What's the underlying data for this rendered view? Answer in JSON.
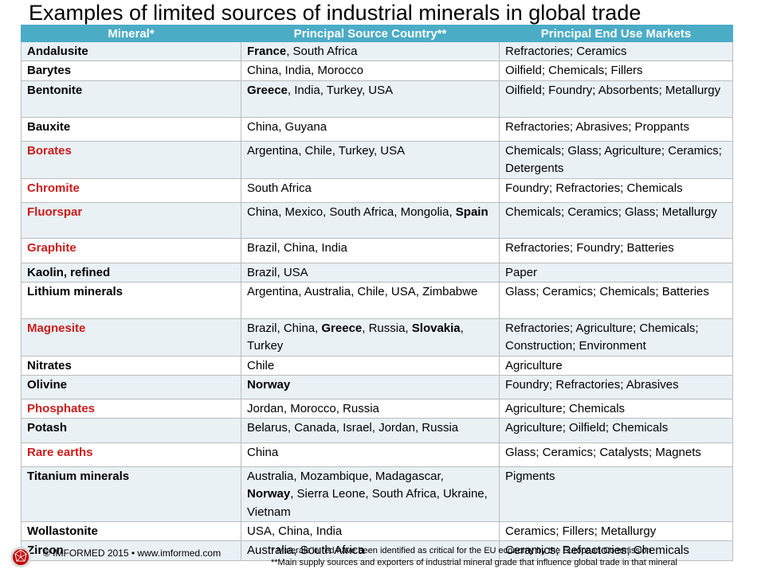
{
  "title": "Examples of limited sources of industrial minerals in global trade",
  "columns": [
    "Mineral*",
    "Principal Source Country**",
    "Principal End Use Markets"
  ],
  "rows": [
    {
      "mineral": "Andalusite",
      "critical": false,
      "sources": [
        {
          "t": "France",
          "b": true
        },
        {
          "t": ", South Africa",
          "b": false
        }
      ],
      "uses": "Refractories; Ceramics",
      "h": 1
    },
    {
      "mineral": "Barytes",
      "critical": false,
      "sources": [
        {
          "t": "China, India, Morocco",
          "b": false
        }
      ],
      "uses": "Oilfield; Chemicals; Fillers",
      "h": 1
    },
    {
      "mineral": "Bentonite",
      "critical": false,
      "sources": [
        {
          "t": "Greece",
          "b": true
        },
        {
          "t": ", India, Turkey, USA",
          "b": false
        }
      ],
      "uses": "Oilfield;  Foundry; Absorbents; Metallurgy",
      "h": 2
    },
    {
      "mineral": "Bauxite",
      "critical": false,
      "sources": [
        {
          "t": "China, Guyana",
          "b": false
        }
      ],
      "uses": "Refractories; Abrasives; Proppants",
      "h": 1.3
    },
    {
      "mineral": "Borates",
      "critical": true,
      "sources": [
        {
          "t": "Argentina, Chile, Turkey, USA",
          "b": false
        }
      ],
      "uses": "Chemicals; Glass; Agriculture; Ceramics; Detergents",
      "h": 2
    },
    {
      "mineral": "Chromite",
      "critical": true,
      "sources": [
        {
          "t": "South Africa",
          "b": false
        }
      ],
      "uses": "Foundry; Refractories; Chemicals",
      "h": 1.3
    },
    {
      "mineral": "Fluorspar",
      "critical": true,
      "sources": [
        {
          "t": "China, Mexico, South Africa, Mongolia, ",
          "b": false
        },
        {
          "t": "Spain",
          "b": true
        }
      ],
      "uses": "Chemicals; Ceramics; Glass; Metallurgy",
      "h": 2
    },
    {
      "mineral": "Graphite",
      "critical": true,
      "sources": [
        {
          "t": "Brazil, China,  India",
          "b": false
        }
      ],
      "uses": "Refractories; Foundry; Batteries",
      "h": 1.3
    },
    {
      "mineral": "Kaolin, refined",
      "critical": false,
      "sources": [
        {
          "t": "Brazil, USA",
          "b": false
        }
      ],
      "uses": "Paper",
      "h": 1
    },
    {
      "mineral": "Lithium minerals",
      "critical": false,
      "sources": [
        {
          "t": "Argentina, Australia, Chile, USA, Zimbabwe",
          "b": false
        }
      ],
      "uses": "Glass; Ceramics; Chemicals; Batteries",
      "h": 2
    },
    {
      "mineral": "Magnesite",
      "critical": true,
      "sources": [
        {
          "t": "Brazil, China, ",
          "b": false
        },
        {
          "t": "Greece",
          "b": true
        },
        {
          "t": ", Russia, ",
          "b": false
        },
        {
          "t": "Slovakia",
          "b": true
        },
        {
          "t": ", Turkey",
          "b": false
        }
      ],
      "uses": "Refractories; Agriculture; Chemicals; Construction; Environment",
      "h": 2
    },
    {
      "mineral": "Nitrates",
      "critical": false,
      "sources": [
        {
          "t": "Chile",
          "b": false
        }
      ],
      "uses": "Agriculture",
      "h": 1
    },
    {
      "mineral": "Olivine",
      "critical": false,
      "sources": [
        {
          "t": "Norway",
          "b": true
        }
      ],
      "uses": "Foundry; Refractories; Abrasives",
      "h": 1.3
    },
    {
      "mineral": "Phosphates",
      "critical": true,
      "sources": [
        {
          "t": "Jordan, Morocco, Russia",
          "b": false
        }
      ],
      "uses": "Agriculture; Chemicals",
      "h": 1
    },
    {
      "mineral": "Potash",
      "critical": false,
      "sources": [
        {
          "t": "Belarus, Canada,  Israel, Jordan, Russia",
          "b": false
        }
      ],
      "uses": "Agriculture; Oilfield;  Chemicals",
      "h": 1.3
    },
    {
      "mineral": "Rare earths",
      "critical": true,
      "sources": [
        {
          "t": "China",
          "b": false
        }
      ],
      "uses": "Glass; Ceramics; Catalysts; Magnets",
      "h": 1.3
    },
    {
      "mineral": "Titanium minerals",
      "critical": false,
      "sources": [
        {
          "t": "Australia, Mozambique, Madagascar, ",
          "b": false
        },
        {
          "t": "Norway",
          "b": true
        },
        {
          "t": ", Sierra Leone, South Africa, Ukraine, Vietnam",
          "b": false
        }
      ],
      "uses": "Pigments",
      "h": 3
    },
    {
      "mineral": "Wollastonite",
      "critical": false,
      "sources": [
        {
          "t": "USA, China,  India",
          "b": false
        }
      ],
      "uses": "Ceramics; Fillers; Metallurgy",
      "h": 1
    },
    {
      "mineral": "Zircon",
      "critical": false,
      "sources": [
        {
          "t": "Australia, South Africa",
          "b": false
        }
      ],
      "uses": "Ceramics; Refractories; Chemicals",
      "h": 1
    }
  ],
  "footer": {
    "copyright": "© IMFORMED  2015 • www.imformed.com",
    "note1": "* Minerals in red have been  identified as critical for the EU economy  by the  European Commission",
    "note2": "**Main supply sources and exporters of industrial mineral grade that influence global trade in that mineral",
    "logo_colors": {
      "ring": "#c00000",
      "outer": "#d9d9d9"
    }
  }
}
